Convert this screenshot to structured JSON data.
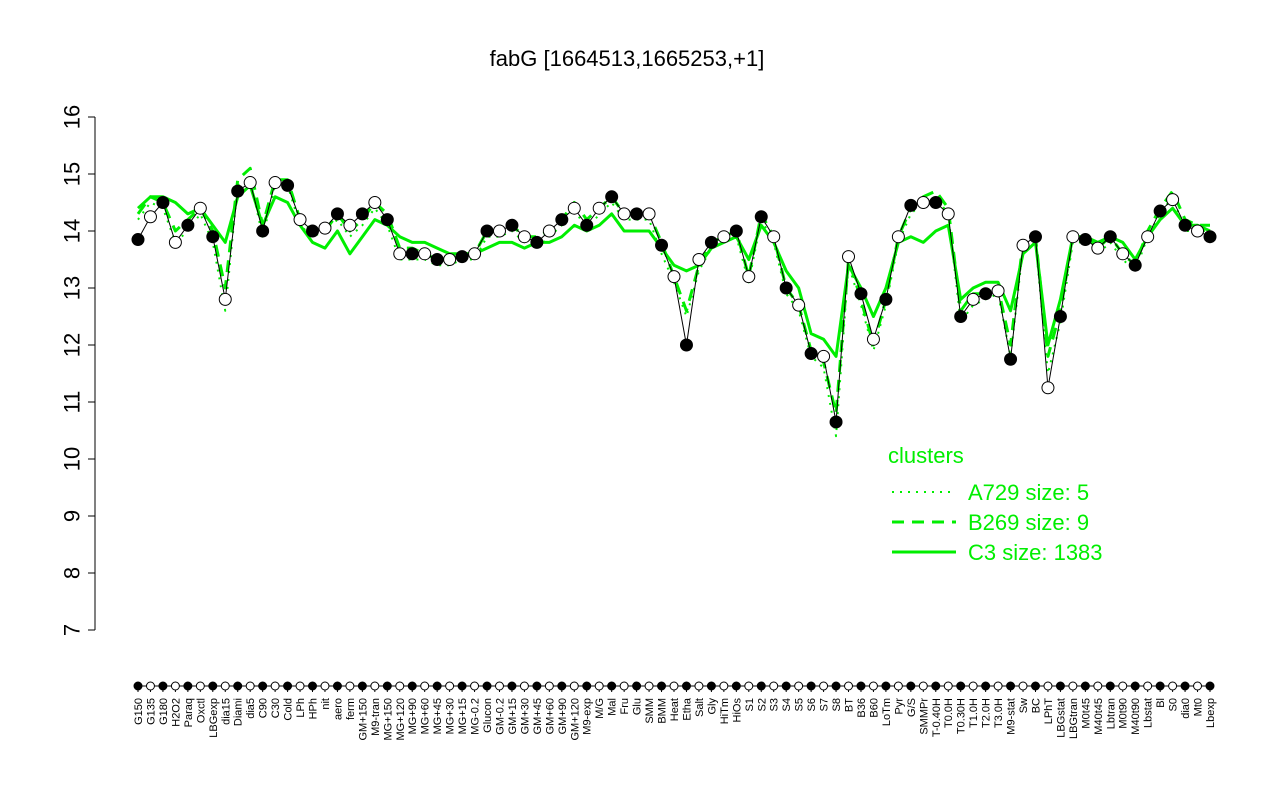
{
  "chart_data": {
    "type": "scatter",
    "title": "fabG [1664513,1665253,+1]",
    "xlabel": "",
    "ylabel": "",
    "ylim": [
      7,
      16
    ],
    "yticks": [
      7,
      8,
      9,
      10,
      11,
      12,
      13,
      14,
      15,
      16
    ],
    "grid": false,
    "categories": [
      "G150",
      "G135",
      "G180",
      "H2O2",
      "Paraq",
      "Oxctl",
      "LBGexp",
      "dia15",
      "Diami",
      "dia5",
      "C90",
      "C30",
      "Cold",
      "LPh",
      "HPh",
      "nit",
      "aero",
      "ferm",
      "GM+150",
      "M9-tran",
      "MG+150",
      "MG+120",
      "MG+90",
      "MG+60",
      "MG+45",
      "MG+30",
      "MG+15",
      "MG-0.2",
      "Glucon",
      "GM-0.2",
      "GM+15",
      "GM+30",
      "GM+45",
      "GM+60",
      "GM+90",
      "GM+120",
      "M9-exp",
      "M/G",
      "Mal",
      "Fru",
      "Glu",
      "SMM",
      "BMM",
      "Heat",
      "Etha",
      "Salt",
      "Gly",
      "HiTm",
      "HiOs",
      "S1",
      "S2",
      "S3",
      "S4",
      "S5",
      "S6",
      "S7",
      "S8",
      "BT",
      "B36",
      "B60",
      "LoTm",
      "Pyr",
      "G/S",
      "SMMPr",
      "T-0.40H",
      "T0.0H",
      "T0.30H",
      "T1.0H",
      "T2.0H",
      "T3.0H",
      "M9-stat",
      "Sw",
      "BC",
      "LPhT",
      "LBGstat",
      "LBGtran",
      "M0t45",
      "M40t45",
      "Lbtran",
      "M0t90",
      "M40t90",
      "Lbstat",
      "Bl",
      "S0",
      "dia0",
      "Mt0",
      "Lbexp"
    ],
    "series": [
      {
        "role": "expression",
        "values": [
          13.85,
          14.25,
          14.5,
          13.8,
          14.1,
          14.4,
          13.9,
          12.8,
          14.7,
          14.85,
          14.0,
          14.85,
          14.8,
          14.2,
          14.0,
          14.05,
          14.3,
          14.1,
          14.3,
          14.5,
          14.2,
          13.6,
          13.6,
          13.6,
          13.5,
          13.5,
          13.55,
          13.6,
          14.0,
          14.0,
          14.1,
          13.9,
          13.8,
          14.0,
          14.2,
          14.4,
          14.1,
          14.4,
          14.6,
          14.3,
          14.3,
          14.3,
          13.75,
          13.2,
          12.0,
          13.5,
          13.8,
          13.9,
          14.0,
          13.2,
          14.25,
          13.9,
          13.0,
          12.7,
          11.85,
          11.8,
          10.65,
          13.55,
          12.9,
          12.1,
          12.8,
          13.9,
          14.45,
          14.5,
          14.5,
          14.3,
          12.5,
          12.8,
          12.9,
          12.95,
          11.75,
          13.75,
          13.9,
          11.25,
          12.5,
          13.9,
          13.85,
          13.7,
          13.9,
          13.6,
          13.4,
          13.9,
          14.35,
          14.55,
          14.1,
          14.0,
          13.9
        ]
      },
      {
        "name": "C3 size: 1383",
        "style": "solid",
        "values": [
          14.4,
          14.6,
          14.6,
          14.5,
          14.3,
          14.4,
          14.1,
          13.8,
          14.6,
          14.8,
          14.1,
          14.6,
          14.5,
          14.1,
          13.8,
          13.7,
          14.0,
          13.6,
          13.9,
          14.2,
          14.1,
          13.9,
          13.8,
          13.8,
          13.7,
          13.6,
          13.6,
          13.6,
          13.7,
          13.8,
          13.8,
          13.7,
          13.8,
          13.8,
          13.9,
          14.1,
          14.0,
          14.1,
          14.3,
          14.0,
          14.0,
          14.0,
          13.7,
          13.4,
          13.3,
          13.4,
          13.7,
          13.8,
          13.9,
          13.5,
          14.1,
          13.8,
          13.3,
          13.0,
          12.2,
          12.1,
          11.8,
          13.4,
          13.0,
          12.5,
          13.0,
          13.8,
          13.9,
          13.8,
          14.0,
          14.1,
          12.8,
          13.0,
          13.1,
          13.1,
          12.6,
          13.6,
          13.8,
          12.0,
          12.8,
          13.9,
          13.9,
          13.8,
          13.9,
          13.8,
          13.5,
          13.9,
          14.2,
          14.4,
          14.1,
          14.1,
          14.0
        ]
      },
      {
        "name": "B269 size: 9",
        "style": "dashed",
        "values": [
          14.3,
          14.6,
          14.5,
          14.0,
          14.2,
          14.4,
          14.0,
          13.0,
          14.9,
          15.1,
          14.1,
          14.9,
          14.9,
          14.2,
          14.0,
          14.0,
          14.3,
          14.0,
          14.2,
          14.5,
          14.3,
          13.7,
          13.7,
          13.6,
          13.5,
          13.5,
          13.6,
          13.6,
          14.0,
          14.0,
          14.1,
          13.9,
          13.9,
          14.0,
          14.2,
          14.5,
          14.2,
          14.4,
          14.6,
          14.3,
          14.3,
          14.3,
          13.8,
          13.2,
          12.6,
          13.4,
          13.8,
          13.9,
          14.0,
          13.2,
          14.3,
          13.9,
          13.0,
          12.7,
          11.9,
          11.7,
          10.8,
          13.5,
          12.8,
          12.0,
          12.8,
          13.9,
          14.4,
          14.6,
          14.7,
          14.4,
          12.6,
          12.9,
          12.9,
          13.0,
          12.0,
          13.8,
          13.9,
          11.8,
          12.6,
          13.9,
          13.9,
          13.7,
          13.9,
          13.6,
          13.4,
          14.0,
          14.4,
          14.7,
          14.2,
          14.1,
          14.1
        ]
      },
      {
        "name": "A729 size: 5",
        "style": "dotted",
        "values": [
          14.2,
          14.5,
          14.4,
          13.8,
          14.0,
          14.3,
          13.8,
          12.6,
          14.8,
          14.9,
          13.9,
          14.8,
          14.8,
          14.1,
          13.9,
          14.0,
          14.2,
          13.9,
          14.1,
          14.4,
          14.1,
          13.5,
          13.5,
          13.5,
          13.4,
          13.4,
          13.5,
          13.5,
          13.9,
          13.9,
          14.0,
          13.8,
          13.7,
          13.9,
          14.1,
          14.4,
          14.0,
          14.3,
          14.5,
          14.2,
          14.2,
          14.2,
          13.6,
          13.1,
          12.5,
          13.3,
          13.7,
          13.8,
          13.9,
          13.1,
          14.2,
          13.8,
          12.9,
          12.6,
          11.8,
          11.6,
          10.4,
          13.4,
          12.7,
          11.9,
          12.7,
          13.8,
          14.3,
          14.5,
          14.6,
          14.3,
          12.4,
          12.7,
          12.8,
          12.9,
          11.8,
          13.7,
          13.8,
          11.5,
          12.4,
          13.8,
          13.8,
          13.6,
          13.8,
          13.5,
          13.3,
          13.9,
          14.3,
          14.6,
          14.0,
          14.0,
          14.0
        ]
      }
    ],
    "legend": {
      "title": "clusters",
      "placement": "bottom-right",
      "entries": [
        "A729 size: 5",
        "B269 size: 9",
        "C3 size: 1383"
      ]
    },
    "colors": {
      "clusters": "#00ee00",
      "points_dark": "#000000",
      "points_light": "#ffffff",
      "axis": "#000000"
    }
  }
}
